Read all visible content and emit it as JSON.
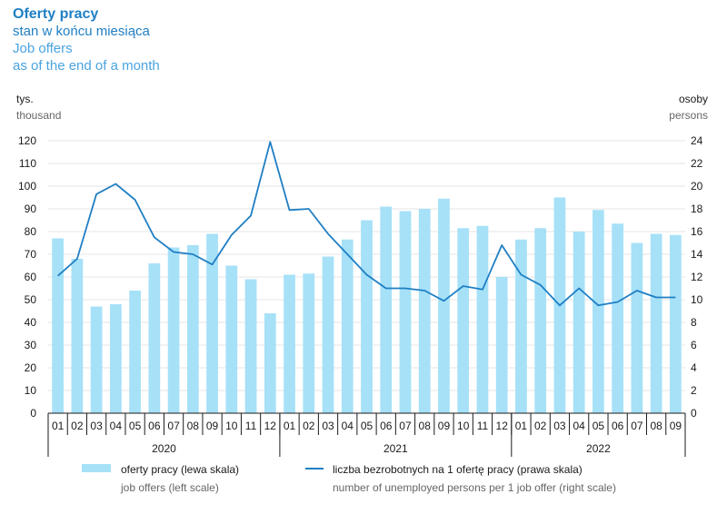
{
  "title": {
    "pl": "Oferty pracy",
    "pl_sub": "stan w końcu miesiąca",
    "en": "Job offers",
    "en_sub": "as of the end of a month"
  },
  "axes": {
    "left_unit": "tys.",
    "left_unit_en": "thousand",
    "right_unit": "osoby",
    "right_unit_en": "persons"
  },
  "legend": {
    "bars_pl": "oferty pracy (lewa skala)",
    "bars_en": "job offers (left scale)",
    "line_pl": "liczba bezrobotnych na 1 ofertę pracy (prawa skala)",
    "line_en": "number of unemployed persons per 1 job offer (right scale)"
  },
  "colors": {
    "bars": "#a6e1f8",
    "line": "#1f7fc4",
    "text": "#1a1a1a"
  },
  "chart_data": {
    "type": "bar",
    "categories": [
      "01",
      "02",
      "03",
      "04",
      "05",
      "06",
      "07",
      "08",
      "09",
      "10",
      "11",
      "12",
      "01",
      "02",
      "03",
      "04",
      "05",
      "06",
      "07",
      "08",
      "09",
      "10",
      "11",
      "12",
      "01",
      "02",
      "03",
      "04",
      "05",
      "06",
      "07",
      "08",
      "09"
    ],
    "years": [
      {
        "label": "2020",
        "start": 0,
        "count": 12
      },
      {
        "label": "2021",
        "start": 12,
        "count": 12
      },
      {
        "label": "2022",
        "start": 24,
        "count": 9
      }
    ],
    "series": [
      {
        "name": "oferty pracy (lewa skala)",
        "type": "bar",
        "axis": "left",
        "values": [
          77,
          68,
          47,
          48,
          54,
          66,
          73,
          74,
          79,
          65,
          59,
          44,
          61,
          61.5,
          69,
          76.5,
          85,
          91,
          89,
          90,
          94.5,
          81.5,
          82.5,
          60,
          76.5,
          81.5,
          95,
          80,
          89.5,
          83.5,
          75,
          79,
          78.5
        ]
      },
      {
        "name": "liczba bezrobotnych na 1 ofertę pracy (prawa skala)",
        "type": "line",
        "axis": "right",
        "values": [
          12.1,
          13.6,
          19.3,
          20.2,
          18.8,
          15.5,
          14.2,
          14.0,
          13.1,
          15.7,
          17.4,
          23.9,
          17.9,
          18.0,
          15.8,
          14.0,
          12.2,
          11.0,
          11.0,
          10.8,
          9.9,
          11.2,
          10.9,
          14.8,
          12.2,
          11.3,
          9.5,
          11.0,
          9.5,
          9.8,
          10.8,
          10.2,
          10.2
        ]
      }
    ],
    "left_axis": {
      "ylim": [
        0,
        120
      ],
      "ticks": [
        "0",
        "10",
        "20",
        "30",
        "40",
        "50",
        "60",
        "70",
        "80",
        "90",
        "100",
        "110",
        "120"
      ]
    },
    "right_axis": {
      "ylim": [
        0,
        24
      ],
      "ticks": [
        "0",
        "2",
        "4",
        "6",
        "8",
        "10",
        "12",
        "14",
        "16",
        "18",
        "20",
        "22",
        "24"
      ]
    },
    "grid": true,
    "legend_position": "bottom"
  }
}
